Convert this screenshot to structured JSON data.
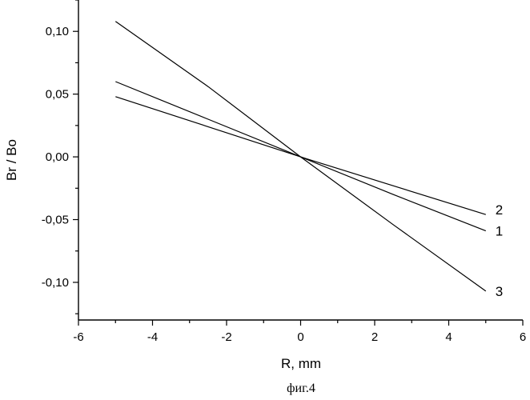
{
  "chart_data": {
    "type": "line",
    "xlabel": "R, mm",
    "ylabel": "Br / Bo",
    "caption": "фиг.4",
    "xlim": [
      -6,
      6
    ],
    "ylim": [
      -0.13,
      0.125
    ],
    "x_ticks": [
      -6,
      -4,
      -2,
      0,
      2,
      4,
      6
    ],
    "x_tick_labels": [
      "-6",
      "-4",
      "-2",
      "0",
      "2",
      "4",
      "6"
    ],
    "y_ticks": [
      0.1,
      0.05,
      0.0,
      -0.05,
      -0.1
    ],
    "y_tick_labels": [
      "0,10",
      "0,05",
      "0,00",
      "-0,05",
      "-0,10"
    ],
    "grid": false,
    "legend": "none",
    "series": [
      {
        "name": "1",
        "x": [
          -5,
          -2.5,
          0,
          2.5,
          5
        ],
        "y": [
          0.06,
          0.03,
          0.0,
          -0.03,
          -0.059
        ]
      },
      {
        "name": "2",
        "x": [
          -5,
          -2.5,
          0,
          2.5,
          5
        ],
        "y": [
          0.048,
          0.024,
          0.0,
          -0.023,
          -0.046
        ]
      },
      {
        "name": "3",
        "x": [
          -5,
          -2.5,
          0,
          2.5,
          5
        ],
        "y": [
          0.108,
          0.056,
          0.0,
          -0.054,
          -0.107
        ]
      }
    ]
  }
}
